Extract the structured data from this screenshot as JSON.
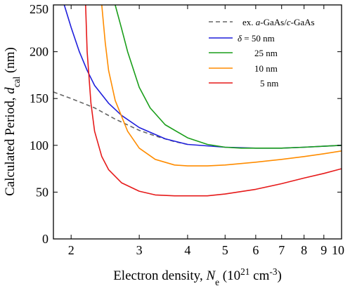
{
  "chart_data": {
    "type": "line",
    "xlabel": {
      "parts": [
        {
          "text": "Electron density, ",
          "style": "normal"
        },
        {
          "text": "N",
          "style": "italic"
        },
        {
          "text": "e",
          "style": "sub"
        },
        {
          "text": " (10",
          "style": "normal"
        },
        {
          "text": "21",
          "style": "sup"
        },
        {
          "text": " cm",
          "style": "normal"
        },
        {
          "text": "-3",
          "style": "sup"
        },
        {
          "text": ")",
          "style": "normal"
        }
      ]
    },
    "ylabel": {
      "parts": [
        {
          "text": "Calculated Period, ",
          "style": "normal"
        },
        {
          "text": "d",
          "style": "italic"
        },
        {
          "text": "cal",
          "style": "sub"
        },
        {
          "text": " (nm)",
          "style": "normal"
        }
      ]
    },
    "x_scale": "log",
    "xlim": [
      1.8,
      10
    ],
    "ylim": [
      0,
      250
    ],
    "x_ticks": [
      2,
      3,
      4,
      5,
      6,
      7,
      8,
      9,
      10
    ],
    "x_tick_labels": [
      "2",
      "3",
      "4",
      "5",
      "6",
      "7",
      "8",
      "9",
      "10"
    ],
    "y_ticks": [
      0,
      50,
      100,
      150,
      200,
      250
    ],
    "y_tick_labels": [
      "0",
      "50",
      "100",
      "150",
      "200",
      "250"
    ],
    "grid": false,
    "legend_position": "top-right",
    "series": [
      {
        "legend": [
          {
            "text": "ex. ",
            "style": "normal"
          },
          {
            "text": "a",
            "style": "italic"
          },
          {
            "text": "-GaAs/",
            "style": "normal"
          },
          {
            "text": "c",
            "style": "italic"
          },
          {
            "text": "-GaAs",
            "style": "normal"
          }
        ],
        "color": "#666666",
        "dash": "6,4",
        "x": [
          1.8,
          2.0,
          2.3,
          2.6,
          3.0,
          3.3,
          3.7,
          4.0
        ],
        "y": [
          157,
          150,
          140,
          128,
          116,
          110,
          104,
          101
        ]
      },
      {
        "legend": [
          {
            "text": "δ",
            "style": "italic"
          },
          {
            "text": " = 50 nm",
            "style": "normal"
          }
        ],
        "color": "#1f1fdc",
        "dash": "",
        "x": [
          1.92,
          2.0,
          2.1,
          2.2,
          2.3,
          2.5,
          2.7,
          3.0,
          3.5,
          4.0,
          5.0,
          6.0,
          7.0,
          8.0,
          9.0,
          10.0
        ],
        "y": [
          250,
          226,
          200,
          180,
          164,
          145,
          132,
          119,
          107,
          101,
          98,
          97,
          97,
          98,
          99,
          100
        ]
      },
      {
        "legend": [
          {
            "text": "25 nm",
            "style": "normal"
          }
        ],
        "color": "#1a9e1a",
        "dash": "",
        "x": [
          2.6,
          2.7,
          2.8,
          3.0,
          3.2,
          3.5,
          4.0,
          4.5,
          5.0,
          5.5,
          6.0,
          7.0,
          8.0,
          9.0,
          10.0
        ],
        "y": [
          250,
          225,
          200,
          162,
          140,
          122,
          108,
          101,
          98,
          97,
          97,
          97,
          98,
          99,
          100
        ]
      },
      {
        "legend": [
          {
            "text": "10 nm",
            "style": "normal"
          }
        ],
        "color": "#ff8c00",
        "dash": "",
        "x": [
          2.4,
          2.45,
          2.5,
          2.6,
          2.8,
          3.0,
          3.3,
          3.7,
          4.0,
          4.5,
          5.0,
          6.0,
          7.0,
          8.0,
          9.0,
          10.0
        ],
        "y": [
          250,
          210,
          180,
          148,
          115,
          97,
          85,
          79,
          78,
          78,
          79,
          82,
          85,
          88,
          91,
          94
        ]
      },
      {
        "legend": [
          {
            "text": "5 nm",
            "style": "normal"
          }
        ],
        "color": "#e61a1a",
        "dash": "",
        "x": [
          2.18,
          2.2,
          2.25,
          2.3,
          2.4,
          2.5,
          2.7,
          3.0,
          3.3,
          3.7,
          4.0,
          4.5,
          5.0,
          6.0,
          7.0,
          8.0,
          9.0,
          10.0
        ],
        "y": [
          250,
          200,
          145,
          115,
          88,
          74,
          60,
          51,
          47,
          46,
          46,
          46,
          48,
          53,
          59,
          65,
          70,
          75
        ]
      }
    ]
  }
}
